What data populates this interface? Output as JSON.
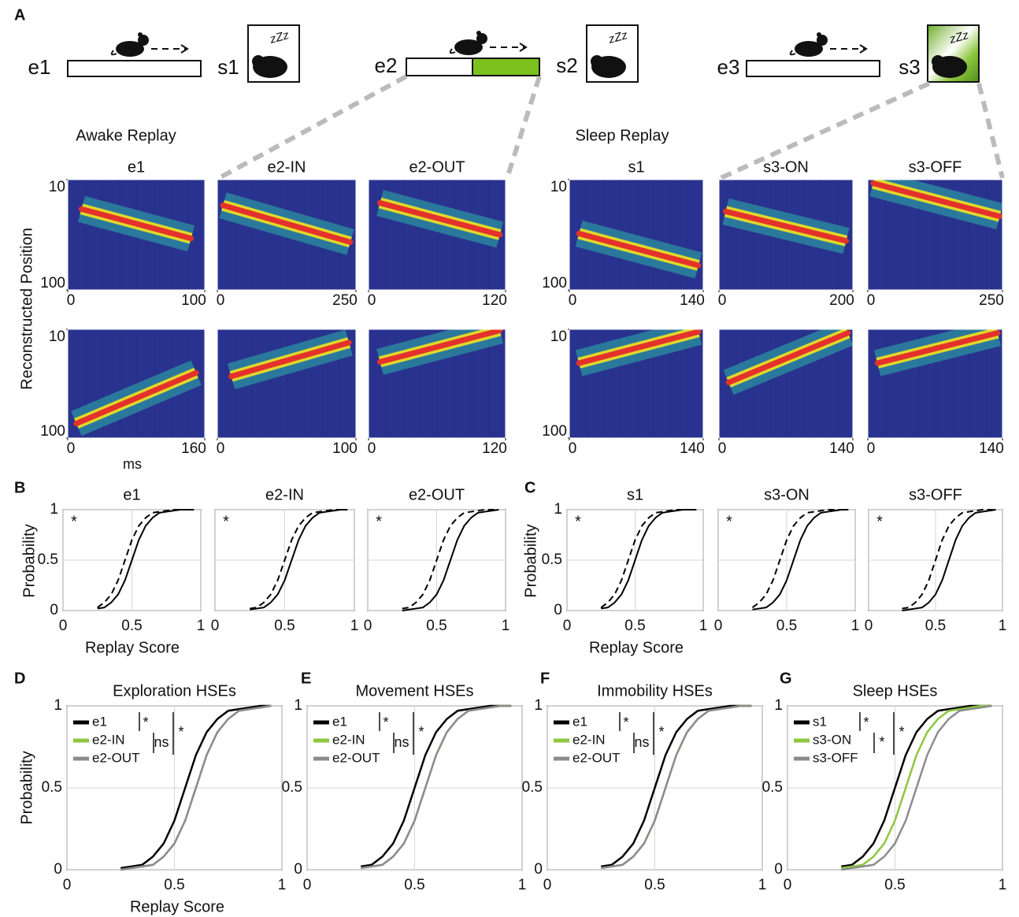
{
  "panel_labels": [
    "A",
    "B",
    "C",
    "D",
    "E",
    "F",
    "G"
  ],
  "schematic": {
    "sessions": [
      {
        "explore": "e1",
        "sleep": "s1"
      },
      {
        "explore": "e2",
        "sleep": "s2"
      },
      {
        "explore": "e3",
        "sleep": "s3"
      }
    ],
    "zzz": "zZz"
  },
  "replay": {
    "groups": [
      {
        "title": "Awake Replay"
      },
      {
        "title": "Sleep Replay"
      }
    ],
    "ylabel": "Reconstructed Position",
    "xlabel": "ms",
    "ylim": [
      10,
      100
    ],
    "yticks": [
      10,
      100
    ],
    "panels": [
      {
        "title": "e1",
        "rows": [
          {
            "xlim": [
              0,
              100
            ],
            "xticks": [
              0,
              100
            ],
            "fit_x": [
              10,
              90
            ],
            "fit_y": [
              34,
              58
            ]
          },
          {
            "xlim": [
              0,
              160
            ],
            "xticks": [
              0,
              160
            ],
            "fit_x": [
              10,
              150
            ],
            "fit_y": [
              88,
              46
            ]
          }
        ]
      },
      {
        "title": "e2-IN",
        "rows": [
          {
            "xlim": [
              0,
              250
            ],
            "xticks": [
              0,
              250
            ],
            "fit_x": [
              10,
              240
            ],
            "fit_y": [
              31,
              61
            ]
          },
          {
            "xlim": [
              0,
              100
            ],
            "xticks": [
              0,
              100
            ],
            "fit_x": [
              10,
              95
            ],
            "fit_y": [
              49,
              21
            ]
          }
        ]
      },
      {
        "title": "e2-OUT",
        "rows": [
          {
            "xlim": [
              0,
              120
            ],
            "xticks": [
              0,
              120
            ],
            "fit_x": [
              10,
              115
            ],
            "fit_y": [
              29,
              55
            ]
          },
          {
            "xlim": [
              0,
              120
            ],
            "xticks": [
              0,
              120
            ],
            "fit_x": [
              10,
              115
            ],
            "fit_y": [
              37,
              11
            ]
          }
        ]
      },
      {
        "title": "s1",
        "rows": [
          {
            "xlim": [
              0,
              140
            ],
            "xticks": [
              0,
              140
            ],
            "fit_x": [
              10,
              135
            ],
            "fit_y": [
              54,
              80
            ]
          },
          {
            "xlim": [
              0,
              140
            ],
            "xticks": [
              0,
              140
            ],
            "fit_x": [
              10,
              135
            ],
            "fit_y": [
              38,
              12
            ]
          }
        ]
      },
      {
        "title": "s3-ON",
        "rows": [
          {
            "xlim": [
              0,
              200
            ],
            "xticks": [
              0,
              200
            ],
            "fit_x": [
              10,
              190
            ],
            "fit_y": [
              36,
              60
            ]
          },
          {
            "xlim": [
              0,
              140
            ],
            "xticks": [
              0,
              140
            ],
            "fit_x": [
              10,
              135
            ],
            "fit_y": [
              54,
              13
            ]
          }
        ]
      },
      {
        "title": "s3-OFF",
        "rows": [
          {
            "xlim": [
              0,
              250
            ],
            "xticks": [
              0,
              250
            ],
            "fit_x": [
              10,
              245
            ],
            "fit_y": [
              13,
              40
            ]
          },
          {
            "xlim": [
              0,
              140
            ],
            "xticks": [
              0,
              140
            ],
            "fit_x": [
              10,
              135
            ],
            "fit_y": [
              38,
              13
            ]
          }
        ]
      }
    ]
  },
  "cdf_bc": {
    "type": "line",
    "ylabel": "Probability",
    "xlabel": "Replay Score",
    "xlim": [
      0,
      1
    ],
    "ylim": [
      0,
      1
    ],
    "xticks": [
      0,
      0.5,
      1
    ],
    "yticks": [
      0,
      0.5,
      1
    ],
    "grid": true,
    "x": [
      0.25,
      0.3,
      0.35,
      0.4,
      0.45,
      0.5,
      0.55,
      0.6,
      0.65,
      0.7,
      0.75,
      0.8,
      0.85,
      0.9,
      0.95
    ],
    "panels": [
      {
        "title": "e1",
        "mark": "*",
        "series": [
          {
            "style": "solid",
            "color": "#000000",
            "values": [
              0.02,
              0.03,
              0.08,
              0.16,
              0.3,
              0.5,
              0.7,
              0.84,
              0.92,
              0.97,
              0.98,
              0.99,
              1,
              1,
              1
            ]
          },
          {
            "style": "dashed",
            "color": "#000000",
            "values": [
              0.03,
              0.08,
              0.16,
              0.3,
              0.5,
              0.7,
              0.84,
              0.92,
              0.97,
              0.98,
              0.99,
              1,
              1,
              1,
              1
            ]
          }
        ]
      },
      {
        "title": "e2-IN",
        "mark": "*",
        "series": [
          {
            "style": "solid",
            "color": "#000000",
            "values": [
              0.01,
              0.02,
              0.03,
              0.08,
              0.16,
              0.3,
              0.5,
              0.7,
              0.84,
              0.92,
              0.97,
              0.98,
              0.99,
              1,
              1
            ]
          },
          {
            "style": "dashed",
            "color": "#000000",
            "values": [
              0.02,
              0.03,
              0.08,
              0.16,
              0.3,
              0.5,
              0.7,
              0.84,
              0.92,
              0.97,
              0.98,
              0.99,
              1,
              1,
              1
            ]
          }
        ]
      },
      {
        "title": "e2-OUT",
        "mark": "*",
        "series": [
          {
            "style": "solid",
            "color": "#000000",
            "values": [
              0,
              0.01,
              0.02,
              0.03,
              0.08,
              0.16,
              0.3,
              0.5,
              0.7,
              0.84,
              0.92,
              0.97,
              0.98,
              0.99,
              1
            ]
          },
          {
            "style": "dashed",
            "color": "#000000",
            "values": [
              0.02,
              0.03,
              0.08,
              0.16,
              0.3,
              0.5,
              0.7,
              0.84,
              0.92,
              0.97,
              0.98,
              0.99,
              1,
              1,
              1
            ]
          }
        ]
      },
      {
        "title": "s1",
        "mark": "*",
        "series": [
          {
            "style": "solid",
            "color": "#000000",
            "values": [
              0.02,
              0.03,
              0.08,
              0.16,
              0.3,
              0.5,
              0.7,
              0.84,
              0.92,
              0.97,
              0.98,
              0.99,
              1,
              1,
              1
            ]
          },
          {
            "style": "dashed",
            "color": "#000000",
            "values": [
              0.03,
              0.08,
              0.16,
              0.3,
              0.5,
              0.7,
              0.84,
              0.92,
              0.97,
              0.98,
              0.99,
              1,
              1,
              1,
              1
            ]
          }
        ]
      },
      {
        "title": "s3-ON",
        "mark": "*",
        "series": [
          {
            "style": "solid",
            "color": "#000000",
            "values": [
              0.01,
              0.02,
              0.03,
              0.08,
              0.16,
              0.3,
              0.5,
              0.7,
              0.84,
              0.92,
              0.97,
              0.98,
              0.99,
              1,
              1
            ]
          },
          {
            "style": "dashed",
            "color": "#000000",
            "values": [
              0.03,
              0.08,
              0.16,
              0.3,
              0.5,
              0.7,
              0.84,
              0.92,
              0.97,
              0.98,
              0.99,
              1,
              1,
              1,
              1
            ]
          }
        ]
      },
      {
        "title": "s3-OFF",
        "mark": "*",
        "series": [
          {
            "style": "solid",
            "color": "#000000",
            "values": [
              0,
              0.01,
              0.02,
              0.03,
              0.08,
              0.16,
              0.3,
              0.5,
              0.7,
              0.84,
              0.92,
              0.97,
              0.98,
              0.99,
              1
            ]
          },
          {
            "style": "dashed",
            "color": "#000000",
            "values": [
              0.02,
              0.03,
              0.08,
              0.16,
              0.3,
              0.5,
              0.7,
              0.84,
              0.92,
              0.97,
              0.98,
              0.99,
              1,
              1,
              1
            ]
          }
        ]
      }
    ]
  },
  "cdf_dg": {
    "type": "line",
    "ylabel": "Probability",
    "xlabel": "Replay Score",
    "xlim": [
      0,
      1
    ],
    "ylim": [
      0,
      1
    ],
    "xticks": [
      0,
      0.5,
      1
    ],
    "yticks": [
      0,
      0.5,
      1
    ],
    "grid": true,
    "x": [
      0.25,
      0.3,
      0.35,
      0.4,
      0.45,
      0.5,
      0.55,
      0.6,
      0.65,
      0.7,
      0.75,
      0.8,
      0.85,
      0.9,
      0.95
    ],
    "panels": [
      {
        "title": "Exploration HSEs",
        "stats": [
          "*",
          "ns",
          "*"
        ],
        "series": [
          {
            "name": "e1",
            "color": "#000000",
            "values": [
              0.01,
              0.02,
              0.03,
              0.08,
              0.16,
              0.3,
              0.5,
              0.7,
              0.84,
              0.92,
              0.97,
              0.98,
              0.99,
              1,
              1
            ]
          },
          {
            "name": "e2-IN",
            "color": "#8dc63f",
            "values": [
              0,
              0.01,
              0.02,
              0.03,
              0.08,
              0.16,
              0.3,
              0.5,
              0.7,
              0.84,
              0.92,
              0.97,
              0.98,
              0.99,
              1
            ]
          },
          {
            "name": "e2-OUT",
            "color": "#8c8c8c",
            "values": [
              0,
              0.01,
              0.02,
              0.03,
              0.08,
              0.16,
              0.3,
              0.5,
              0.7,
              0.84,
              0.92,
              0.97,
              0.98,
              0.99,
              1
            ]
          }
        ]
      },
      {
        "title": "Movement HSEs",
        "stats": [
          "*",
          "ns",
          "*"
        ],
        "series": [
          {
            "name": "e1",
            "color": "#000000",
            "values": [
              0.02,
              0.03,
              0.08,
              0.16,
              0.3,
              0.5,
              0.7,
              0.84,
              0.92,
              0.97,
              0.98,
              0.99,
              1,
              1,
              1
            ]
          },
          {
            "name": "e2-IN",
            "color": "#8dc63f",
            "values": [
              0.01,
              0.02,
              0.03,
              0.08,
              0.16,
              0.3,
              0.5,
              0.7,
              0.84,
              0.92,
              0.97,
              0.98,
              0.99,
              1,
              1
            ]
          },
          {
            "name": "e2-OUT",
            "color": "#8c8c8c",
            "values": [
              0.01,
              0.02,
              0.03,
              0.08,
              0.16,
              0.3,
              0.5,
              0.7,
              0.84,
              0.92,
              0.97,
              0.98,
              0.99,
              1,
              1
            ]
          }
        ]
      },
      {
        "title": "Immobility HSEs",
        "stats": [
          "*",
          "ns",
          "*"
        ],
        "series": [
          {
            "name": "e1",
            "color": "#000000",
            "values": [
              0.02,
              0.03,
              0.08,
              0.16,
              0.3,
              0.5,
              0.7,
              0.84,
              0.92,
              0.97,
              0.98,
              0.99,
              1,
              1,
              1
            ]
          },
          {
            "name": "e2-IN",
            "color": "#8dc63f",
            "values": [
              0.01,
              0.02,
              0.03,
              0.08,
              0.16,
              0.3,
              0.5,
              0.7,
              0.84,
              0.92,
              0.97,
              0.98,
              0.99,
              1,
              1
            ]
          },
          {
            "name": "e2-OUT",
            "color": "#8c8c8c",
            "values": [
              0.01,
              0.02,
              0.03,
              0.08,
              0.16,
              0.3,
              0.5,
              0.7,
              0.84,
              0.92,
              0.97,
              0.98,
              0.99,
              1,
              1
            ]
          }
        ]
      },
      {
        "title": "Sleep HSEs",
        "stats": [
          "*",
          "*",
          "*"
        ],
        "series": [
          {
            "name": "s1",
            "color": "#000000",
            "values": [
              0.02,
              0.03,
              0.08,
              0.16,
              0.3,
              0.5,
              0.7,
              0.84,
              0.92,
              0.97,
              0.98,
              0.99,
              1,
              1,
              1
            ]
          },
          {
            "name": "s3-ON",
            "color": "#8dc63f",
            "values": [
              0.01,
              0.02,
              0.03,
              0.08,
              0.16,
              0.3,
              0.5,
              0.7,
              0.84,
              0.92,
              0.97,
              0.98,
              0.99,
              1,
              1
            ]
          },
          {
            "name": "s3-OFF",
            "color": "#8c8c8c",
            "values": [
              0,
              0.01,
              0.02,
              0.03,
              0.08,
              0.16,
              0.3,
              0.5,
              0.7,
              0.84,
              0.92,
              0.97,
              0.98,
              0.99,
              1
            ]
          }
        ]
      }
    ]
  }
}
